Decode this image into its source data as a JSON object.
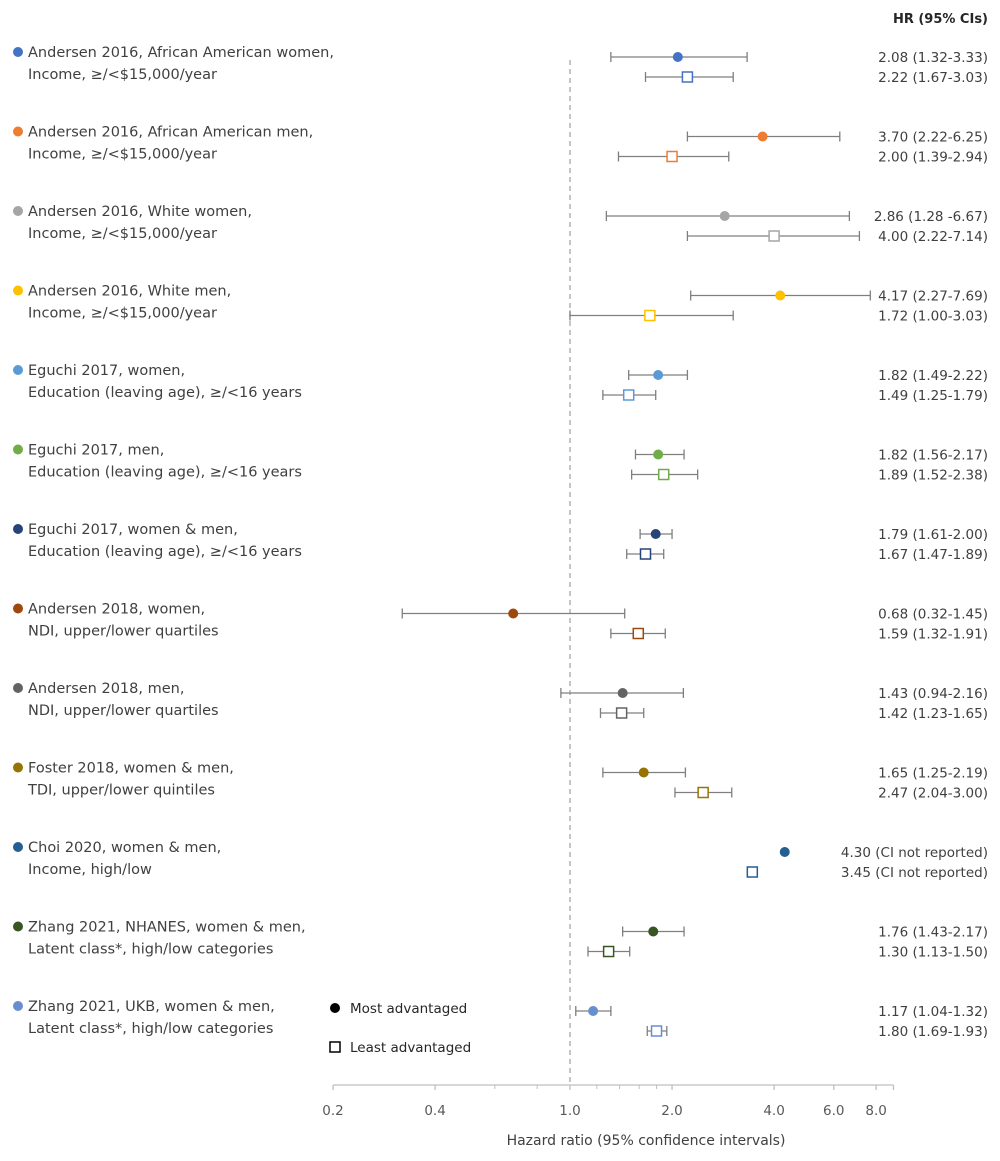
{
  "chart_data": {
    "type": "forest",
    "title": "",
    "column_header": "HR (95% CIs)",
    "xlabel": "Hazard ratio (95% confidence intervals)",
    "x_scale": "log",
    "xlim": [
      0.2,
      9.0
    ],
    "x_ticks": [
      {
        "value": 0.2,
        "label": "0.2"
      },
      {
        "value": 0.4,
        "label": "0.4"
      },
      {
        "value": 1.0,
        "label": "1.0"
      },
      {
        "value": 2.0,
        "label": "2.0"
      },
      {
        "value": 4.0,
        "label": "4.0"
      },
      {
        "value": 6.0,
        "label": "6.0"
      },
      {
        "value": 8.0,
        "label": "8.0"
      }
    ],
    "x_minor_ticks": [
      0.6,
      0.8,
      1.2,
      1.4,
      1.6,
      1.8
    ],
    "reference_line": 1.0,
    "legend": {
      "placement": "bottom-center",
      "entries": [
        {
          "marker": "circle-filled",
          "label": "Most advantaged"
        },
        {
          "marker": "square-open",
          "label": "Least advantaged"
        }
      ]
    },
    "studies": [
      {
        "line1": "Andersen 2016, African American women,",
        "line2": "Income, ≥/<$15,000/year",
        "color": "#4472C4",
        "most": {
          "hr": 2.08,
          "lo": 1.32,
          "hi": 3.33,
          "text": "2.08 (1.32-3.33)"
        },
        "least": {
          "hr": 2.22,
          "lo": 1.67,
          "hi": 3.03,
          "text": "2.22 (1.67-3.03)"
        }
      },
      {
        "line1": "Andersen 2016, African American men,",
        "line2": "Income, ≥/<$15,000/year",
        "color": "#ED7D31",
        "most": {
          "hr": 3.7,
          "lo": 2.22,
          "hi": 6.25,
          "text": "3.70 (2.22-6.25)"
        },
        "least": {
          "hr": 2.0,
          "lo": 1.39,
          "hi": 2.94,
          "text": "2.00 (1.39-2.94)"
        }
      },
      {
        "line1": "Andersen 2016, White women,",
        "line2": "Income, ≥/<$15,000/year",
        "color": "#A5A5A5",
        "most": {
          "hr": 2.86,
          "lo": 1.28,
          "hi": 6.67,
          "text": "2.86 (1.28 -6.67)"
        },
        "least": {
          "hr": 4.0,
          "lo": 2.22,
          "hi": 7.14,
          "text": "4.00 (2.22-7.14)"
        }
      },
      {
        "line1": "Andersen 2016, White men,",
        "line2": "Income, ≥/<$15,000/year",
        "color": "#FFC000",
        "most": {
          "hr": 4.17,
          "lo": 2.27,
          "hi": 7.69,
          "text": "4.17 (2.27-7.69)"
        },
        "least": {
          "hr": 1.72,
          "lo": 1.0,
          "hi": 3.03,
          "text": "1.72 (1.00-3.03)"
        }
      },
      {
        "line1": "Eguchi 2017, women,",
        "line2": "Education (leaving age), ≥/<16 years",
        "color": "#5B9BD5",
        "most": {
          "hr": 1.82,
          "lo": 1.49,
          "hi": 2.22,
          "text": "1.82 (1.49-2.22)"
        },
        "least": {
          "hr": 1.49,
          "lo": 1.25,
          "hi": 1.79,
          "text": "1.49 (1.25-1.79)"
        }
      },
      {
        "line1": "Eguchi 2017, men,",
        "line2": "Education (leaving age), ≥/<16 years",
        "color": "#70AD47",
        "most": {
          "hr": 1.82,
          "lo": 1.56,
          "hi": 2.17,
          "text": "1.82 (1.56-2.17)"
        },
        "least": {
          "hr": 1.89,
          "lo": 1.52,
          "hi": 2.38,
          "text": "1.89 (1.52-2.38)"
        }
      },
      {
        "line1": "Eguchi 2017, women & men,",
        "line2": "Education (leaving age), ≥/<16 years",
        "color": "#264478",
        "most": {
          "hr": 1.79,
          "lo": 1.61,
          "hi": 2.0,
          "text": "1.79 (1.61-2.00)"
        },
        "least": {
          "hr": 1.67,
          "lo": 1.47,
          "hi": 1.89,
          "text": "1.67 (1.47-1.89)"
        }
      },
      {
        "line1": "Andersen 2018, women,",
        "line2": "NDI, upper/lower quartiles",
        "color": "#9E480E",
        "most": {
          "hr": 0.68,
          "lo": 0.32,
          "hi": 1.45,
          "text": "0.68 (0.32-1.45)"
        },
        "least": {
          "hr": 1.59,
          "lo": 1.32,
          "hi": 1.91,
          "text": "1.59 (1.32-1.91)"
        }
      },
      {
        "line1": "Andersen 2018, men,",
        "line2": "NDI, upper/lower quartiles",
        "color": "#636363",
        "most": {
          "hr": 1.43,
          "lo": 0.94,
          "hi": 2.16,
          "text": "1.43 (0.94-2.16)"
        },
        "least": {
          "hr": 1.42,
          "lo": 1.23,
          "hi": 1.65,
          "text": "1.42 (1.23-1.65)"
        }
      },
      {
        "line1": "Foster 2018, women & men,",
        "line2": "TDI, upper/lower quintiles",
        "color": "#997300",
        "most": {
          "hr": 1.65,
          "lo": 1.25,
          "hi": 2.19,
          "text": "1.65 (1.25-2.19)"
        },
        "least": {
          "hr": 2.47,
          "lo": 2.04,
          "hi": 3.0,
          "text": "2.47 (2.04-3.00)"
        }
      },
      {
        "line1": "Choi 2020, women & men,",
        "line2": "Income, high/low",
        "color": "#255E91",
        "most": {
          "hr": 4.3,
          "lo": null,
          "hi": null,
          "text": "4.30 (CI not reported)"
        },
        "least": {
          "hr": 3.45,
          "lo": null,
          "hi": null,
          "text": "3.45 (CI not reported)"
        }
      },
      {
        "line1": "Zhang 2021, NHANES, women & men,",
        "line2": "Latent class*, high/low categories",
        "color": "#375623",
        "most": {
          "hr": 1.76,
          "lo": 1.43,
          "hi": 2.17,
          "text": "1.76 (1.43-2.17)"
        },
        "least": {
          "hr": 1.3,
          "lo": 1.13,
          "hi": 1.5,
          "text": "1.30 (1.13-1.50)"
        }
      },
      {
        "line1": "Zhang 2021, UKB, women & men,",
        "line2": "Latent class*, high/low categories",
        "color": "#698ED0",
        "most": {
          "hr": 1.17,
          "lo": 1.04,
          "hi": 1.32,
          "text": "1.17 (1.04-1.32)"
        },
        "least": {
          "hr": 1.8,
          "lo": 1.69,
          "hi": 1.93,
          "text": "1.80 (1.69-1.93)"
        }
      }
    ]
  }
}
